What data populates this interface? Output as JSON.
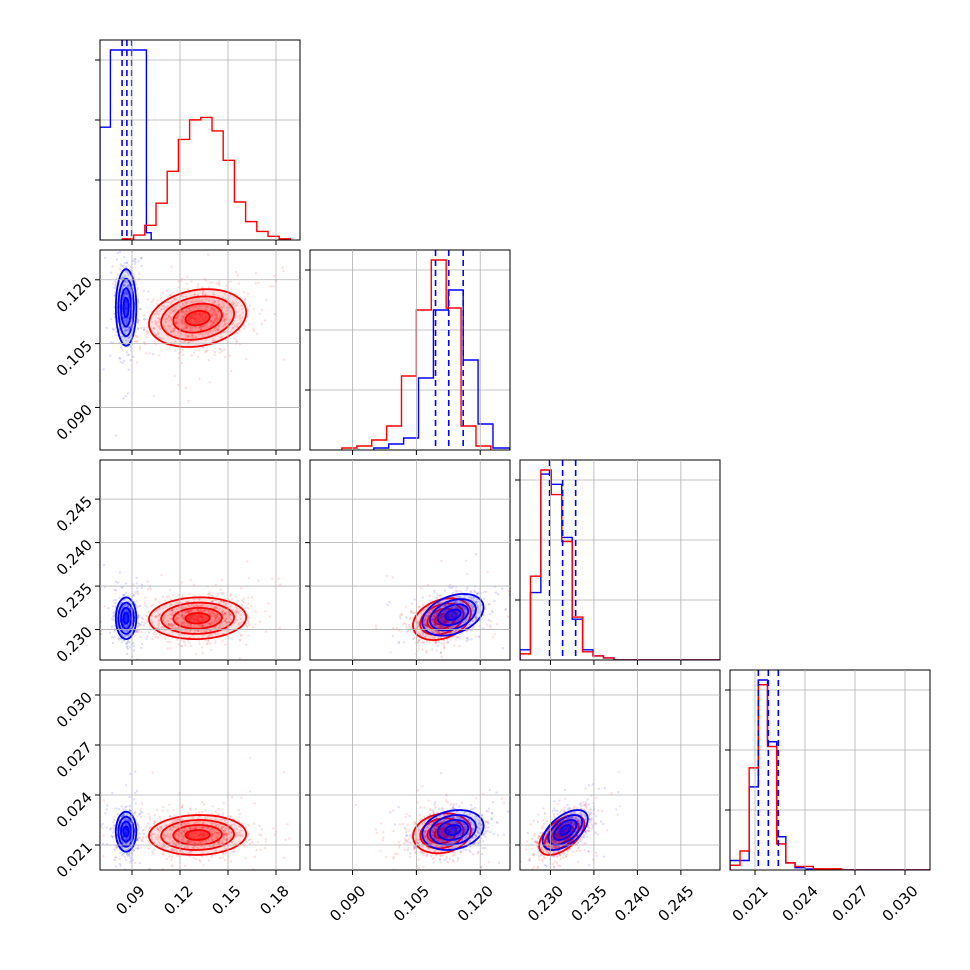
{
  "chart_data": {
    "type": "corner",
    "grid": true,
    "series": [
      {
        "color": "#0000ff",
        "style": "blue"
      },
      {
        "color": "#ff0000",
        "style": "red"
      }
    ],
    "parameters": [
      {
        "range": [
          0.07,
          0.195
        ],
        "ticks": [
          "0.09",
          "0.12",
          "0.15",
          "0.18"
        ],
        "tick_values": [
          0.09,
          0.12,
          0.15,
          0.18
        ]
      },
      {
        "range": [
          0.08,
          0.127
        ],
        "ticks": [
          "0.090",
          "0.105",
          "0.120"
        ],
        "tick_values": [
          0.09,
          0.105,
          0.12
        ]
      },
      {
        "range": [
          0.2265,
          0.2495
        ],
        "ticks": [
          "0.230",
          "0.235",
          "0.240",
          "0.245"
        ],
        "tick_values": [
          0.23,
          0.235,
          0.24,
          0.245
        ]
      },
      {
        "range": [
          0.0195,
          0.0315
        ],
        "ticks": [
          "0.021",
          "0.024",
          "0.027",
          "0.030"
        ],
        "tick_values": [
          0.021,
          0.024,
          0.027,
          0.03
        ]
      }
    ],
    "marginals": [
      {
        "quantile_lines_blue": [
          0.0838,
          0.0868,
          0.0898
        ],
        "blue": {
          "bins": [
            0.07,
            0.0765,
            0.0825,
            0.093,
            0.099,
            0.102
          ],
          "heights": [
            0.92,
            1.55,
            1.55,
            1.55,
            0.06
          ]
        },
        "red": {
          "bins": [
            0.084,
            0.091,
            0.098,
            0.105,
            0.112,
            0.119,
            0.126,
            0.133,
            0.14,
            0.147,
            0.154,
            0.161,
            0.168,
            0.175,
            0.182,
            0.189
          ],
          "heights": [
            0.01,
            0.04,
            0.12,
            0.3,
            0.56,
            0.82,
            0.98,
            1.0,
            0.89,
            0.65,
            0.31,
            0.15,
            0.07,
            0.03,
            0.01
          ]
        }
      },
      {
        "quantile_lines_blue": [
          0.1095,
          0.1126,
          0.116
        ],
        "blue": {
          "bins": [
            0.095,
            0.0985,
            0.102,
            0.1055,
            0.109,
            0.1125,
            0.116,
            0.1195,
            0.123,
            0.127
          ],
          "heights": [
            0.01,
            0.03,
            0.06,
            0.36,
            0.7,
            0.8,
            0.45,
            0.13,
            0.01
          ]
        },
        "red": {
          "bins": [
            0.0875,
            0.091,
            0.0945,
            0.098,
            0.1015,
            0.105,
            0.1085,
            0.112,
            0.1155,
            0.119,
            0.1225
          ],
          "heights": [
            0.01,
            0.02,
            0.05,
            0.12,
            0.37,
            0.7,
            0.95,
            0.71,
            0.12,
            0.02
          ]
        }
      },
      {
        "quantile_lines_blue": [
          0.2299,
          0.2314,
          0.2329
        ],
        "blue": {
          "bins": [
            0.2265,
            0.2277,
            0.2289,
            0.2301,
            0.2313,
            0.2325,
            0.2337,
            0.2349,
            0.2361,
            0.2373,
            0.2495
          ],
          "heights": [
            0.05,
            0.33,
            0.91,
            0.86,
            0.6,
            0.2,
            0.05,
            0.02,
            0.01,
            0.0
          ]
        },
        "red": {
          "bins": [
            0.2265,
            0.2277,
            0.2289,
            0.2301,
            0.2313,
            0.2325,
            0.2337,
            0.2349,
            0.2361,
            0.2373,
            0.2495
          ],
          "heights": [
            0.03,
            0.41,
            0.93,
            0.81,
            0.58,
            0.21,
            0.04,
            0.02,
            0.01,
            0.0
          ]
        }
      },
      {
        "quantile_lines_blue": [
          0.0212,
          0.0218,
          0.0224
        ],
        "blue": {
          "bins": [
            0.0195,
            0.02065,
            0.0212,
            0.02175,
            0.0223,
            0.02285,
            0.0234,
            0.024,
            0.025,
            0.0315
          ],
          "heights": [
            0.04,
            0.35,
            0.8,
            0.54,
            0.14,
            0.03,
            0.01,
            0.004,
            0.0
          ]
        },
        "red": {
          "bins": [
            0.0195,
            0.0201,
            0.02065,
            0.0212,
            0.02175,
            0.0223,
            0.02285,
            0.0234,
            0.0245,
            0.0262,
            0.0315
          ],
          "heights": [
            0.02,
            0.08,
            0.43,
            0.78,
            0.52,
            0.11,
            0.03,
            0.015,
            0.005,
            0.0
          ]
        }
      }
    ],
    "contours_2d": [
      {
        "x_param": 0,
        "y_param": 1,
        "blue": {
          "center": [
            0.0863,
            0.1135
          ],
          "sigma": [
            0.0032,
            0.0045
          ],
          "rho": 0.0
        },
        "red": {
          "center": [
            0.131,
            0.111
          ],
          "sigma": [
            0.0152,
            0.0034
          ],
          "rho": 0.2
        }
      },
      {
        "x_param": 0,
        "y_param": 2,
        "blue": {
          "center": [
            0.0863,
            0.2313
          ],
          "sigma": [
            0.0032,
            0.0012
          ],
          "rho": 0.0
        },
        "red": {
          "center": [
            0.131,
            0.2313
          ],
          "sigma": [
            0.0152,
            0.0012
          ],
          "rho": 0.05
        }
      },
      {
        "x_param": 0,
        "y_param": 3,
        "blue": {
          "center": [
            0.0863,
            0.0218
          ],
          "sigma": [
            0.0032,
            0.0006
          ],
          "rho": 0.0
        },
        "red": {
          "center": [
            0.131,
            0.0216
          ],
          "sigma": [
            0.0152,
            0.0006
          ],
          "rho": 0.05
        }
      },
      {
        "x_param": 1,
        "y_param": 2,
        "blue": {
          "center": [
            0.1136,
            0.2317
          ],
          "sigma": [
            0.0036,
            0.0012
          ],
          "rho": 0.35
        },
        "red": {
          "center": [
            0.111,
            0.2312
          ],
          "sigma": [
            0.0034,
            0.0012
          ],
          "rho": 0.3
        }
      },
      {
        "x_param": 1,
        "y_param": 3,
        "blue": {
          "center": [
            0.1136,
            0.0219
          ],
          "sigma": [
            0.0036,
            0.0006
          ],
          "rho": 0.2
        },
        "red": {
          "center": [
            0.111,
            0.0217
          ],
          "sigma": [
            0.0034,
            0.0006
          ],
          "rho": 0.15
        }
      },
      {
        "x_param": 2,
        "y_param": 3,
        "blue": {
          "center": [
            0.2317,
            0.0219
          ],
          "sigma": [
            0.0013,
            0.0006
          ],
          "rho": 0.55
        },
        "red": {
          "center": [
            0.2313,
            0.0216
          ],
          "sigma": [
            0.0013,
            0.0006
          ],
          "rho": 0.55
        }
      }
    ],
    "contour_levels_sigma": [
      0.5,
      1.0,
      1.5,
      2.0
    ]
  }
}
